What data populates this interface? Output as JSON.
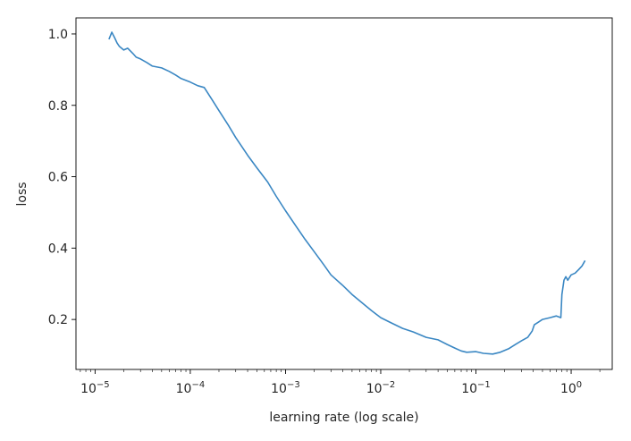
{
  "chart_data": {
    "type": "line",
    "title": "",
    "xlabel": "learning rate (log scale)",
    "ylabel": "loss",
    "xscale": "log",
    "xlim": [
      6.3e-06,
      2.7
    ],
    "ylim": [
      0.06,
      1.045
    ],
    "grid": false,
    "x_ticks": [
      {
        "value": 1e-05,
        "base": "10",
        "exp": "−5"
      },
      {
        "value": 0.0001,
        "base": "10",
        "exp": "−4"
      },
      {
        "value": 0.001,
        "base": "10",
        "exp": "−3"
      },
      {
        "value": 0.01,
        "base": "10",
        "exp": "−2"
      },
      {
        "value": 0.1,
        "base": "10",
        "exp": "−1"
      },
      {
        "value": 1,
        "base": "10",
        "exp": "0"
      }
    ],
    "y_ticks": [
      {
        "value": 0.2,
        "label": "0.2"
      },
      {
        "value": 0.4,
        "label": "0.4"
      },
      {
        "value": 0.6,
        "label": "0.6"
      },
      {
        "value": 0.8,
        "label": "0.8"
      },
      {
        "value": 1.0,
        "label": "1.0"
      }
    ],
    "series": [
      {
        "name": "loss",
        "color": "#3a87c3",
        "x": [
          1.4e-05,
          1.5e-05,
          1.6e-05,
          1.7e-05,
          1.8e-05,
          2e-05,
          2.2e-05,
          2.5e-05,
          2.7e-05,
          3e-05,
          3.5e-05,
          4e-05,
          5e-05,
          6e-05,
          7e-05,
          8e-05,
          0.0001,
          0.00012,
          0.00014,
          0.00017,
          0.0002,
          0.00025,
          0.0003,
          0.0004,
          0.0005,
          0.00065,
          0.0008,
          0.001,
          0.0013,
          0.0016,
          0.002,
          0.0025,
          0.003,
          0.004,
          0.005,
          0.0065,
          0.008,
          0.01,
          0.013,
          0.017,
          0.022,
          0.03,
          0.04,
          0.05,
          0.06,
          0.07,
          0.08,
          0.1,
          0.12,
          0.15,
          0.18,
          0.22,
          0.26,
          0.3,
          0.35,
          0.39,
          0.41,
          0.45,
          0.5,
          0.6,
          0.7,
          0.78,
          0.8,
          0.84,
          0.88,
          0.92,
          1.0,
          1.1,
          1.2,
          1.3,
          1.4
        ],
        "y": [
          0.985,
          1.005,
          0.99,
          0.975,
          0.965,
          0.955,
          0.96,
          0.945,
          0.935,
          0.93,
          0.92,
          0.91,
          0.905,
          0.895,
          0.885,
          0.875,
          0.865,
          0.855,
          0.85,
          0.815,
          0.785,
          0.745,
          0.71,
          0.66,
          0.625,
          0.585,
          0.545,
          0.505,
          0.46,
          0.425,
          0.39,
          0.355,
          0.325,
          0.295,
          0.27,
          0.245,
          0.225,
          0.205,
          0.19,
          0.175,
          0.165,
          0.15,
          0.143,
          0.13,
          0.12,
          0.112,
          0.108,
          0.11,
          0.105,
          0.103,
          0.108,
          0.118,
          0.13,
          0.14,
          0.15,
          0.168,
          0.185,
          0.192,
          0.2,
          0.205,
          0.21,
          0.205,
          0.27,
          0.31,
          0.32,
          0.31,
          0.325,
          0.33,
          0.34,
          0.35,
          0.365
        ]
      }
    ]
  }
}
